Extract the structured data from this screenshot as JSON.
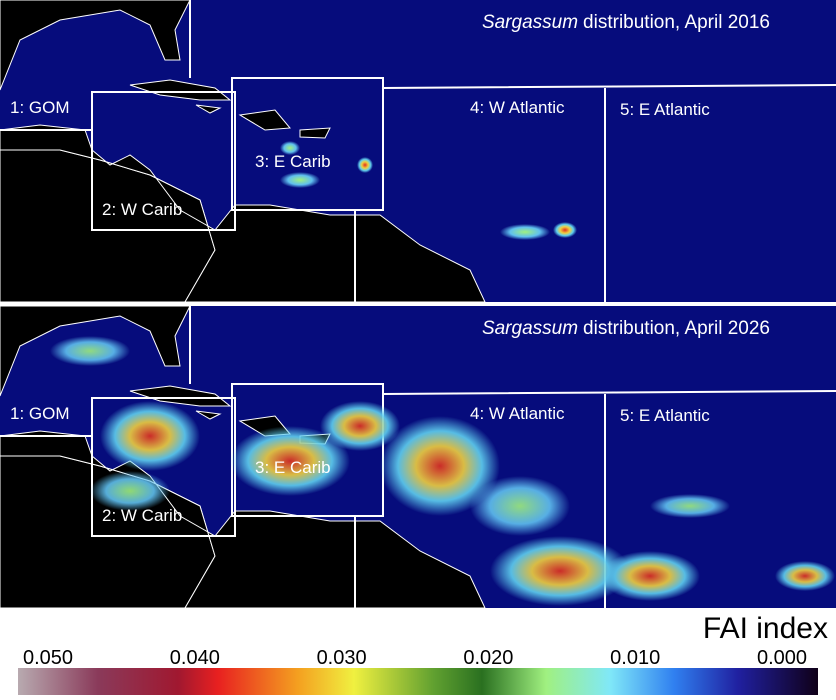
{
  "panels": [
    {
      "title_italic": "Sargassum",
      "title_rest": "distribution, April 2016",
      "regions": [
        "1: GOM",
        "2: W Carib",
        "3: E Carib",
        "4: W Atlantic",
        "5: E Atlantic"
      ]
    },
    {
      "title_italic": "Sargassum",
      "title_rest": "distribution, April 2026",
      "regions": [
        "1: GOM",
        "2: W Carib",
        "3: E Carib",
        "4: W Atlantic",
        "5: E Atlantic"
      ]
    }
  ],
  "colorbar": {
    "title": "FAI index",
    "lim": [
      0.05,
      0
    ],
    "ticks": [
      {
        "value": 0.05,
        "label": "0.050"
      },
      {
        "value": 0.04,
        "label": "0.040"
      },
      {
        "value": 0.03,
        "label": "0.030"
      },
      {
        "value": 0.02,
        "label": "0.020"
      },
      {
        "value": 0.01,
        "label": "0.010"
      },
      {
        "value": 0,
        "label": "0.000"
      }
    ]
  }
}
